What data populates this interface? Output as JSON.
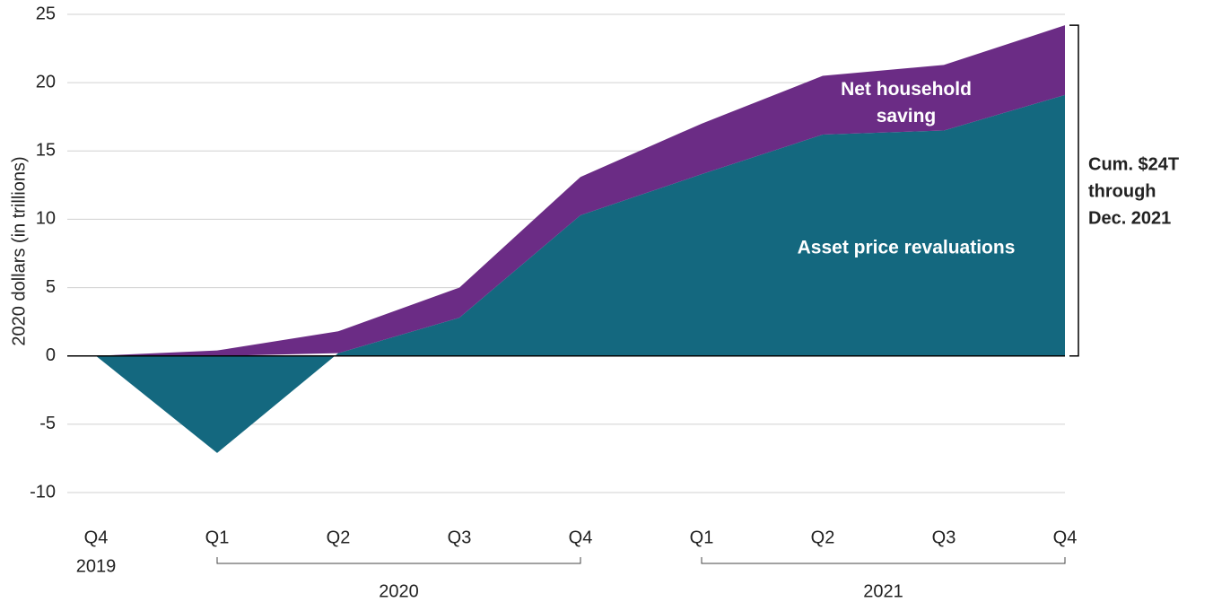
{
  "chart_data": {
    "type": "stacked_area",
    "y_label": "2020 dollars (in trillions)",
    "categories": [
      {
        "quarter": "Q4",
        "year": "2019"
      },
      {
        "quarter": "Q1",
        "year": "2020"
      },
      {
        "quarter": "Q2",
        "year": "2020"
      },
      {
        "quarter": "Q3",
        "year": "2020"
      },
      {
        "quarter": "Q4",
        "year": "2020"
      },
      {
        "quarter": "Q1",
        "year": "2021"
      },
      {
        "quarter": "Q2",
        "year": "2021"
      },
      {
        "quarter": "Q3",
        "year": "2021"
      },
      {
        "quarter": "Q4",
        "year": "2021"
      }
    ],
    "series": [
      {
        "name": "Asset price revaluations",
        "color": "#14687f",
        "values": [
          0,
          -7.1,
          0.2,
          2.8,
          10.3,
          13.3,
          16.2,
          16.5,
          19.1
        ]
      },
      {
        "name": "Net household saving",
        "color": "#6b2c85",
        "values": [
          0,
          0.4,
          1.6,
          2.2,
          2.8,
          3.7,
          4.3,
          4.8,
          5.1
        ]
      }
    ],
    "annotation": [
      "Cum. $24T",
      "through",
      "Dec. 2021"
    ],
    "ylim": [
      -10,
      25
    ],
    "yticks": [
      -10,
      -5,
      0,
      5,
      10,
      15,
      20,
      25
    ],
    "grid": true
  }
}
